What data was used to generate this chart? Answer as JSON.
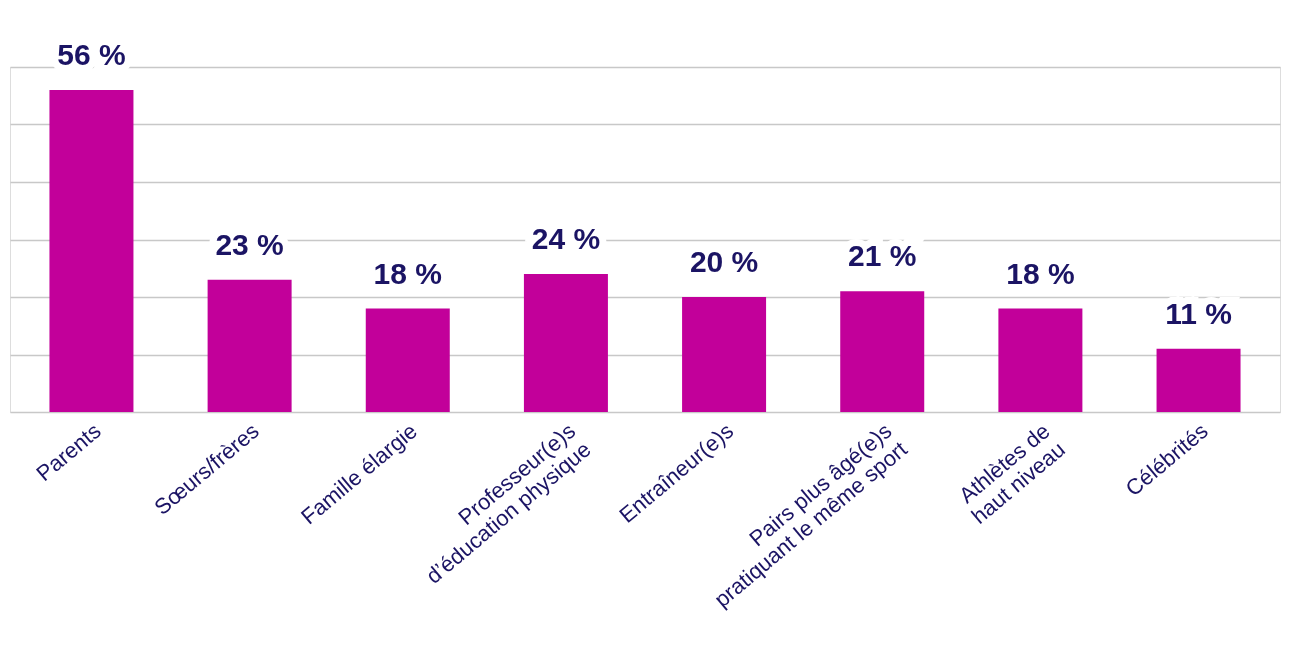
{
  "chart_data": {
    "type": "bar",
    "categories": [
      "Parents",
      "Sœurs/frères",
      "Famille élargie",
      "Professeur(e)s\nd’éducation physique",
      "Entraîneur(e)s",
      "Pairs plus âgé(e)s\npratiquant le même sport",
      "Athlètes de\nhaut niveau",
      "Célébrités"
    ],
    "values": [
      56,
      23,
      18,
      24,
      20,
      21,
      18,
      11
    ],
    "color": "#c2009a",
    "value_labels": [
      "56 %",
      "23 %",
      "18 %",
      "24 %",
      "20 %",
      "21 %",
      "18 %",
      "11 %"
    ],
    "ylim": [
      0,
      60
    ],
    "yticks": [
      0,
      10,
      20,
      30,
      40,
      50,
      60
    ],
    "grid": "y",
    "tick_labels": "x"
  }
}
